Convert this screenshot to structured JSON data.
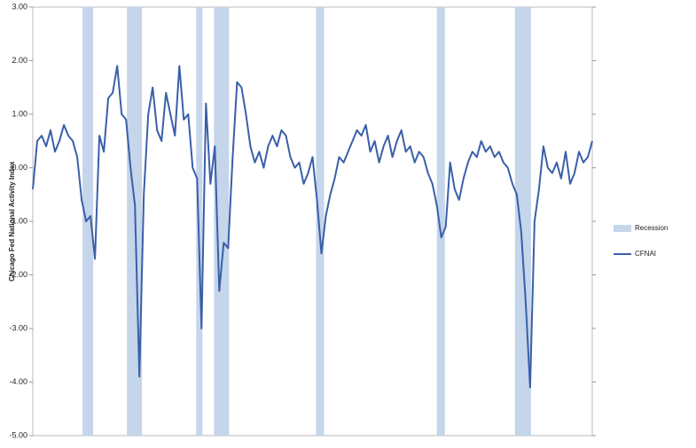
{
  "chart_data": {
    "type": "line",
    "y_label": "Chicago Fed National Activity Index",
    "xlim": [
      0,
      126
    ],
    "ylim": [
      -5,
      3
    ],
    "yticks": [
      {
        "value": 3,
        "label": "3.00"
      },
      {
        "value": 2,
        "label": "2.00"
      },
      {
        "value": 1,
        "label": "1.00"
      },
      {
        "value": 0,
        "label": "0.00"
      },
      {
        "value": -1,
        "label": "-1.00"
      },
      {
        "value": -2,
        "label": "-2.00"
      },
      {
        "value": -3,
        "label": "-3.00"
      },
      {
        "value": -4,
        "label": "-4.00"
      },
      {
        "value": -5,
        "label": "-5.00"
      }
    ],
    "x": [
      0,
      1,
      2,
      3,
      4,
      5,
      6,
      7,
      8,
      9,
      10,
      11,
      12,
      13,
      14,
      15,
      16,
      17,
      18,
      19,
      20,
      21,
      22,
      23,
      24,
      25,
      26,
      27,
      28,
      29,
      30,
      31,
      32,
      33,
      34,
      35,
      36,
      37,
      38,
      39,
      40,
      41,
      42,
      43,
      44,
      45,
      46,
      47,
      48,
      49,
      50,
      51,
      52,
      53,
      54,
      55,
      56,
      57,
      58,
      59,
      60,
      61,
      62,
      63,
      64,
      65,
      66,
      67,
      68,
      69,
      70,
      71,
      72,
      73,
      74,
      75,
      76,
      77,
      78,
      79,
      80,
      81,
      82,
      83,
      84,
      85,
      86,
      87,
      88,
      89,
      90,
      91,
      92,
      93,
      94,
      95,
      96,
      97,
      98,
      99,
      100,
      101,
      102,
      103,
      104,
      105,
      106,
      107,
      108,
      109,
      110,
      111,
      112,
      113,
      114,
      115,
      116,
      117,
      118,
      119,
      120,
      121,
      122,
      123,
      124,
      125,
      126
    ],
    "series": [
      {
        "name": "Recession",
        "color": "#c5d5ea",
        "ranges": [
          [
            11.2,
            13.6
          ],
          [
            21.2,
            24.6
          ],
          [
            36.8,
            38.2
          ],
          [
            40.8,
            44.2
          ],
          [
            63.8,
            65.6
          ],
          [
            91,
            92.8
          ],
          [
            108.6,
            112.2
          ]
        ]
      },
      {
        "name": "CFNAI",
        "color": "#3a5fa9",
        "values": [
          -0.4,
          0.5,
          0.6,
          0.4,
          0.7,
          0.3,
          0.5,
          0.8,
          0.6,
          0.5,
          0.2,
          -0.6,
          -1.0,
          -0.9,
          -1.7,
          0.6,
          0.3,
          1.3,
          1.4,
          1.9,
          1.0,
          0.9,
          0.0,
          -0.7,
          -3.9,
          -0.5,
          1.0,
          1.5,
          0.7,
          0.5,
          1.4,
          1.0,
          0.6,
          1.9,
          0.9,
          1.0,
          0.0,
          -0.2,
          -3.0,
          1.2,
          -0.3,
          0.4,
          -2.3,
          -1.4,
          -1.5,
          0.2,
          1.6,
          1.5,
          1.0,
          0.4,
          0.1,
          0.3,
          0.0,
          0.4,
          0.6,
          0.4,
          0.7,
          0.6,
          0.2,
          0.0,
          0.1,
          -0.3,
          -0.1,
          0.2,
          -0.6,
          -1.6,
          -0.9,
          -0.5,
          -0.2,
          0.2,
          0.1,
          0.3,
          0.5,
          0.7,
          0.6,
          0.8,
          0.3,
          0.5,
          0.1,
          0.4,
          0.6,
          0.2,
          0.5,
          0.7,
          0.3,
          0.4,
          0.1,
          0.3,
          0.2,
          -0.1,
          -0.3,
          -0.7,
          -1.3,
          -1.1,
          0.1,
          -0.4,
          -0.6,
          -0.2,
          0.1,
          0.3,
          0.2,
          0.5,
          0.3,
          0.4,
          0.2,
          0.3,
          0.1,
          0.0,
          -0.3,
          -0.5,
          -1.2,
          -2.5,
          -4.1,
          -1.0,
          -0.4,
          0.4,
          0.0,
          -0.1,
          0.1,
          -0.2,
          0.3,
          -0.3,
          -0.1,
          0.3,
          0.1,
          0.2,
          0.5
        ]
      }
    ]
  }
}
